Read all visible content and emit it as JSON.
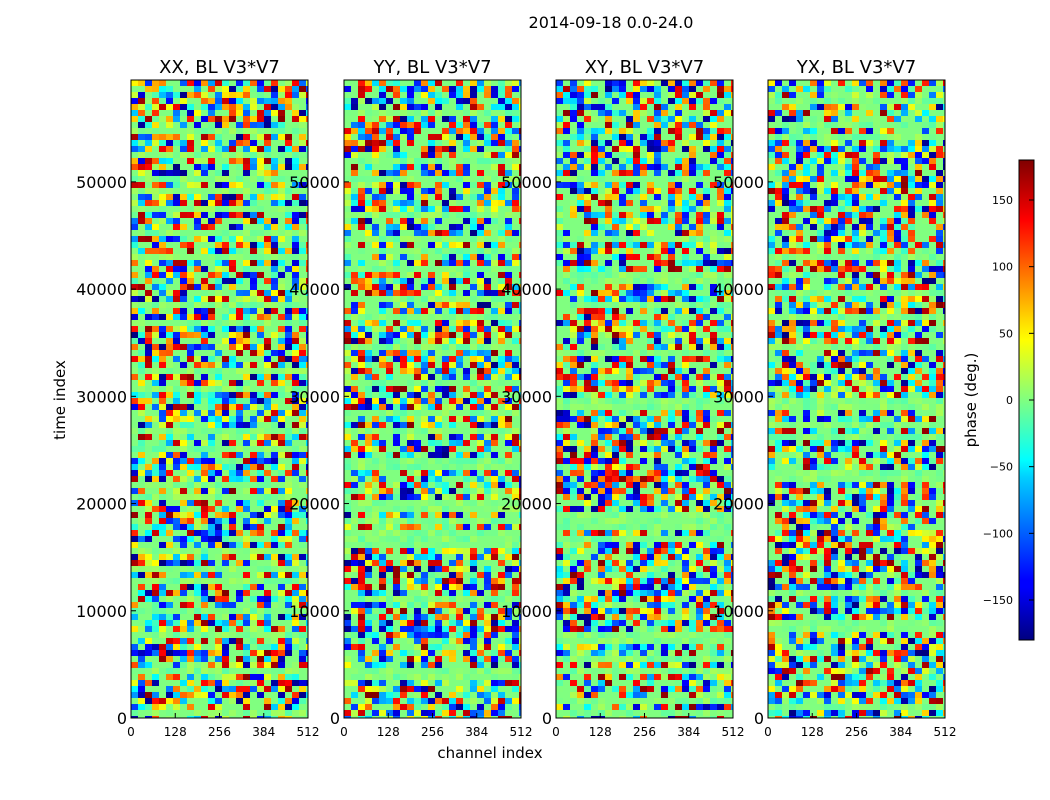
{
  "figure": {
    "suptitle": "2014-09-18 0.0-24.0",
    "xlabel": "channel index",
    "ylabel": "time index"
  },
  "chart_data": {
    "type": "heatmap",
    "colormap": "jet",
    "panels": [
      {
        "title": "XX, BL V3*V7"
      },
      {
        "title": "YY, BL V3*V7"
      },
      {
        "title": "XY, BL V3*V7"
      },
      {
        "title": "YX, BL V3*V7"
      }
    ],
    "xlim": [
      0,
      512
    ],
    "ylim": [
      0,
      59500
    ],
    "x_ticks": [
      0,
      128,
      256,
      384,
      512
    ],
    "y_ticks": [
      0,
      10000,
      20000,
      30000,
      40000,
      50000
    ],
    "colorbar": {
      "label": "phase (deg.)",
      "range": [
        -180,
        180
      ],
      "ticks": [
        -150,
        -100,
        -50,
        0,
        50,
        100,
        150
      ],
      "tick_labels": [
        "−150",
        "−100",
        "−50",
        "0",
        "50",
        "100",
        "150"
      ]
    }
  }
}
